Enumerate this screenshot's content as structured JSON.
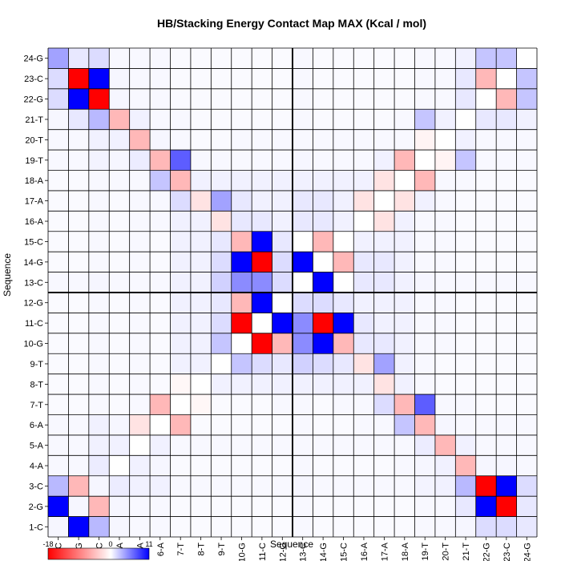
{
  "chart_data": {
    "type": "heatmap",
    "title": "HB/Stacking Energy Contact Map MAX (Kcal / mol)",
    "xlabel": "Sequence",
    "ylabel": "Sequence",
    "labels": [
      "1-C",
      "2-G",
      "3-C",
      "4-A",
      "5-A",
      "6-A",
      "7-T",
      "8-T",
      "9-T",
      "10-G",
      "11-C",
      "12-G",
      "13-C",
      "14-G",
      "15-C",
      "16-A",
      "17-A",
      "18-A",
      "19-T",
      "20-T",
      "21-T",
      "22-G",
      "23-C",
      "24-G"
    ],
    "color_range": [
      -18,
      11
    ],
    "colorbar_ticks": [
      "-18",
      "0",
      "11"
    ],
    "colors": {
      "negative": "#ff0000",
      "zero": "#ffffff",
      "positive": "#0000ff",
      "grid": "#000000"
    },
    "strand_divider_after": "12-G",
    "values": [
      [
        0.4,
        11,
        3,
        0.4,
        0.3,
        0.3,
        0.2,
        0.2,
        0.2,
        0.2,
        0.2,
        0.2,
        0.3,
        0.2,
        0.2,
        0.2,
        0.2,
        0.2,
        0.3,
        0.3,
        0.4,
        1.5,
        1.5,
        1.0
      ],
      [
        11,
        0.4,
        -5,
        0.4,
        0.3,
        0.3,
        0.2,
        0.2,
        0.2,
        0.2,
        0.2,
        0.2,
        0.3,
        0.2,
        0.2,
        0.2,
        0.2,
        0.2,
        0.3,
        0.3,
        1,
        11,
        -18,
        1.0
      ],
      [
        3,
        -5,
        0.4,
        0.8,
        0.6,
        0.6,
        0.3,
        0.3,
        0.3,
        0.3,
        0.3,
        0.3,
        0.4,
        0.3,
        0.3,
        0.3,
        0.3,
        0.3,
        0.5,
        0.6,
        3,
        -18,
        11,
        1.5
      ],
      [
        0.3,
        0.3,
        0.8,
        0,
        0.6,
        0.4,
        0.2,
        0.2,
        0.2,
        0.2,
        0.2,
        0.2,
        0.3,
        0.2,
        0.2,
        0.2,
        0.2,
        0.3,
        0.4,
        0.6,
        -5,
        0.4,
        0.4,
        0.3
      ],
      [
        0.3,
        0.3,
        0.6,
        0.6,
        0,
        0.6,
        0.3,
        0.3,
        0.3,
        0.3,
        0.3,
        0.3,
        0.3,
        0.3,
        0.3,
        0.3,
        0.3,
        0.3,
        0.8,
        -5,
        0.6,
        0.3,
        0.3,
        0.3
      ],
      [
        0.3,
        0.3,
        0.6,
        0.4,
        -2,
        0,
        -5,
        0.2,
        0.2,
        0.2,
        0.2,
        0.2,
        0.3,
        0.2,
        0.2,
        0.3,
        0.3,
        2.5,
        -5,
        0.4,
        0.3,
        0.3,
        0.3,
        0.3
      ],
      [
        0.2,
        0.2,
        0.3,
        0.2,
        0.3,
        -5,
        0,
        -0.6,
        0.2,
        0.2,
        0.2,
        0.3,
        0.3,
        0.2,
        0.3,
        0.3,
        1.5,
        -5,
        7,
        0.3,
        0.3,
        0.2,
        0.2,
        0.2
      ],
      [
        0.2,
        0.2,
        0.3,
        0.2,
        0.3,
        0.2,
        -0.6,
        0,
        0.6,
        0.6,
        0.6,
        0.6,
        0.6,
        0.6,
        0.6,
        0.6,
        -2,
        0.6,
        0.3,
        0.2,
        0.2,
        0.2,
        0.2,
        0.2
      ],
      [
        0.2,
        0.2,
        0.3,
        0.2,
        0.3,
        0.2,
        0.6,
        0.6,
        0,
        2.5,
        1.5,
        1.0,
        2,
        1.5,
        1.0,
        -2,
        4,
        0.6,
        0.3,
        0.2,
        0.2,
        0.2,
        0.2,
        0.2
      ],
      [
        0.2,
        0.2,
        0.3,
        0.2,
        0.3,
        0.2,
        0.6,
        0.6,
        2.5,
        0,
        -18,
        -5,
        5,
        11,
        -5,
        1.0,
        1.0,
        0.6,
        0.3,
        0.3,
        0.2,
        0.2,
        0.2,
        0.2
      ],
      [
        0.2,
        0.2,
        0.3,
        0.2,
        0.3,
        0.2,
        0.6,
        0.6,
        1.5,
        -18,
        0,
        11,
        5,
        -18,
        11,
        1.0,
        0.6,
        0.6,
        0.3,
        0.3,
        0.2,
        0.2,
        0.2,
        0.2
      ],
      [
        0.2,
        0.2,
        0.3,
        0.2,
        0.3,
        0.2,
        0.6,
        0.6,
        1.0,
        -5,
        11,
        0,
        1.5,
        1.5,
        1.0,
        0.6,
        0.6,
        0.6,
        0.3,
        0.3,
        0.2,
        0.2,
        0.2,
        0.2
      ],
      [
        0.3,
        0.3,
        0.4,
        0.3,
        0.3,
        0.3,
        0.6,
        0.6,
        2,
        5,
        5,
        1.5,
        0,
        11,
        0,
        1.0,
        1.0,
        0.6,
        0.4,
        0.3,
        0.3,
        0.3,
        0.3,
        0.3
      ],
      [
        0.2,
        0.2,
        0.3,
        0.2,
        0.3,
        0.2,
        0.6,
        0.6,
        1.5,
        11,
        -18,
        1.5,
        11,
        0,
        -5,
        1.0,
        1.0,
        0.6,
        0.3,
        0.3,
        0.2,
        0.2,
        0.2,
        0.2
      ],
      [
        0.2,
        0.2,
        0.3,
        0.2,
        0.3,
        0.2,
        0.6,
        0.6,
        1.0,
        -5,
        11,
        1.0,
        0,
        -5,
        0,
        0.6,
        0.6,
        0.6,
        0.3,
        0.3,
        0.2,
        0.2,
        0.2,
        0.2
      ],
      [
        0.2,
        0.2,
        0.3,
        0.2,
        0.3,
        0.3,
        0.6,
        0.6,
        -2,
        1.0,
        1.0,
        0.6,
        1.0,
        1.0,
        0.6,
        0,
        -2,
        0.6,
        0.3,
        0.3,
        0.2,
        0.2,
        0.2,
        0.2
      ],
      [
        0.2,
        0.2,
        0.3,
        0.2,
        0.3,
        0.3,
        1.5,
        -2,
        4,
        1.0,
        0.6,
        0.6,
        1.0,
        1.0,
        0.6,
        -2,
        0,
        -2,
        0.6,
        0.3,
        0.2,
        0.2,
        0.2,
        0.2
      ],
      [
        0.2,
        0.2,
        0.3,
        0.3,
        0.3,
        2.5,
        -5,
        0.6,
        0.6,
        0.6,
        0.6,
        0.6,
        0.6,
        0.6,
        0.6,
        0.6,
        -2,
        0,
        -5,
        0.3,
        0.3,
        0.2,
        0.2,
        0.2
      ],
      [
        0.3,
        0.3,
        0.5,
        0.4,
        0.8,
        -5,
        7,
        0.3,
        0.3,
        0.3,
        0.3,
        0.3,
        0.4,
        0.3,
        0.3,
        0.3,
        0.6,
        -5,
        0,
        -0.8,
        2.5,
        0.3,
        0.3,
        0.3
      ],
      [
        0.3,
        0.3,
        0.6,
        0.6,
        -5,
        0.4,
        0.3,
        0.2,
        0.2,
        0.3,
        0.3,
        0.3,
        0.3,
        0.3,
        0.3,
        0.3,
        0.3,
        0.3,
        -0.8,
        0,
        0.6,
        0.3,
        0.3,
        0.3
      ],
      [
        0.4,
        1,
        3,
        -5,
        0.6,
        0.3,
        0.3,
        0.2,
        0.2,
        0.2,
        0.2,
        0.2,
        0.3,
        0.2,
        0.2,
        0.2,
        0.2,
        0.3,
        2.5,
        0.6,
        0,
        1.0,
        1.0,
        0.6
      ],
      [
        1.5,
        11,
        -18,
        0.4,
        0.3,
        0.3,
        0.2,
        0.2,
        0.2,
        0.2,
        0.2,
        0.2,
        0.3,
        0.2,
        0.2,
        0.2,
        0.2,
        0.2,
        0.3,
        0.3,
        1.0,
        0,
        -5,
        2.5
      ],
      [
        1.5,
        -18,
        11,
        0.4,
        0.3,
        0.3,
        0.2,
        0.2,
        0.2,
        0.2,
        0.2,
        0.2,
        0.3,
        0.2,
        0.2,
        0.2,
        0.2,
        0.2,
        0.3,
        0.3,
        1.0,
        -5,
        0,
        2.5
      ],
      [
        4,
        1.0,
        1.5,
        0.3,
        0.3,
        0.3,
        0.2,
        0.2,
        0.2,
        0.2,
        0.2,
        0.2,
        0.3,
        0.2,
        0.2,
        0.2,
        0.2,
        0.2,
        0.3,
        0.3,
        0.6,
        2.5,
        2.5,
        0
      ]
    ]
  }
}
